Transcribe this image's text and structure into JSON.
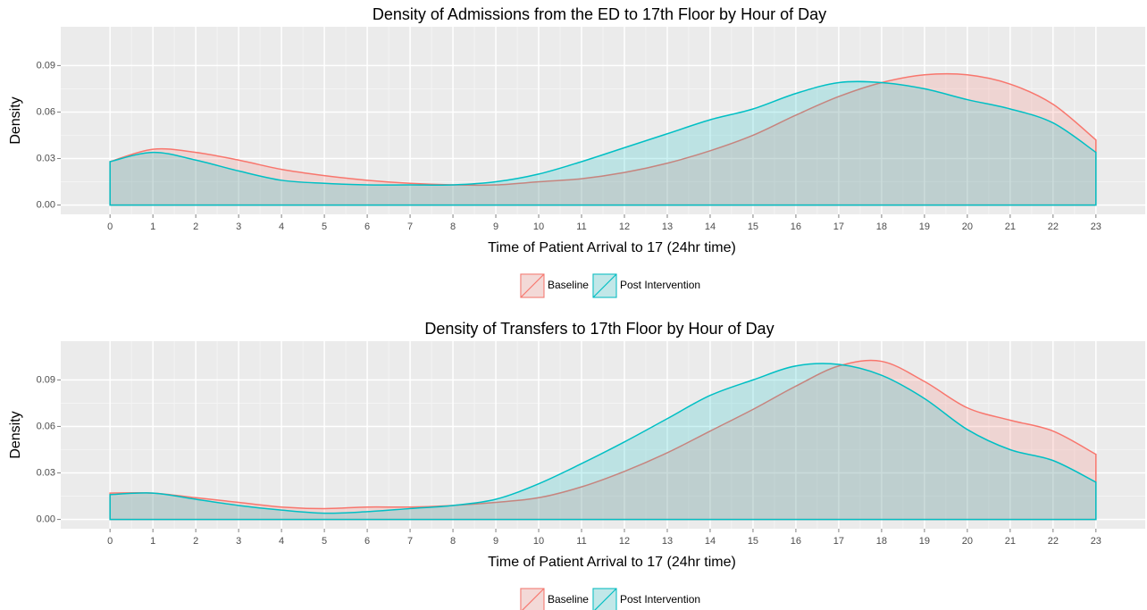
{
  "chart_data": [
    {
      "type": "density",
      "title": "Density of Admissions from the ED to 17th Floor by Hour of Day",
      "x_label": "Time of Patient Arrival to 17 (24hr time)",
      "y_label": "Density",
      "x": [
        0,
        1,
        2,
        3,
        4,
        5,
        6,
        7,
        8,
        9,
        10,
        11,
        12,
        13,
        14,
        15,
        16,
        17,
        18,
        19,
        20,
        21,
        22,
        23
      ],
      "series": [
        {
          "name": "Baseline",
          "color": "#F8766D",
          "values": [
            0.028,
            0.036,
            0.034,
            0.029,
            0.023,
            0.019,
            0.016,
            0.014,
            0.013,
            0.013,
            0.015,
            0.017,
            0.021,
            0.027,
            0.035,
            0.045,
            0.058,
            0.07,
            0.079,
            0.084,
            0.084,
            0.078,
            0.065,
            0.042
          ]
        },
        {
          "name": "Post Intervention",
          "color": "#00BFC4",
          "values": [
            0.028,
            0.034,
            0.029,
            0.022,
            0.016,
            0.014,
            0.013,
            0.013,
            0.013,
            0.015,
            0.02,
            0.028,
            0.037,
            0.046,
            0.055,
            0.062,
            0.072,
            0.079,
            0.079,
            0.075,
            0.068,
            0.062,
            0.053,
            0.034
          ]
        }
      ],
      "xlim": [
        -1.15,
        24.15
      ],
      "xticks": [
        0,
        1,
        2,
        3,
        4,
        5,
        6,
        7,
        8,
        9,
        10,
        11,
        12,
        13,
        14,
        15,
        16,
        17,
        18,
        19,
        20,
        21,
        22,
        23
      ],
      "ylim": [
        -0.006,
        0.115
      ],
      "yticks": [
        {
          "value": 0,
          "label": "0.00"
        },
        0.03,
        0.06,
        0.09
      ],
      "grid": true,
      "legend": "bottom"
    },
    {
      "type": "density",
      "title": "Density of Transfers to 17th Floor by Hour of Day",
      "x_label": "Time of Patient Arrival to 17 (24hr time)",
      "y_label": "Density",
      "x": [
        0,
        1,
        2,
        3,
        4,
        5,
        6,
        7,
        8,
        9,
        10,
        11,
        12,
        13,
        14,
        15,
        16,
        17,
        18,
        19,
        20,
        21,
        22,
        23
      ],
      "series": [
        {
          "name": "Baseline",
          "color": "#F8766D",
          "values": [
            0.017,
            0.017,
            0.014,
            0.011,
            0.008,
            0.007,
            0.008,
            0.008,
            0.009,
            0.011,
            0.014,
            0.021,
            0.031,
            0.043,
            0.057,
            0.071,
            0.086,
            0.099,
            0.102,
            0.089,
            0.072,
            0.064,
            0.057,
            0.042
          ]
        },
        {
          "name": "Post Intervention",
          "color": "#00BFC4",
          "values": [
            0.016,
            0.017,
            0.013,
            0.009,
            0.006,
            0.004,
            0.005,
            0.007,
            0.009,
            0.013,
            0.023,
            0.036,
            0.05,
            0.065,
            0.08,
            0.09,
            0.099,
            0.1,
            0.093,
            0.078,
            0.058,
            0.045,
            0.038,
            0.024
          ]
        }
      ],
      "xlim": [
        -1.15,
        24.15
      ],
      "xticks": [
        0,
        1,
        2,
        3,
        4,
        5,
        6,
        7,
        8,
        9,
        10,
        11,
        12,
        13,
        14,
        15,
        16,
        17,
        18,
        19,
        20,
        21,
        22,
        23
      ],
      "ylim": [
        -0.006,
        0.115
      ],
      "yticks": [
        {
          "value": 0,
          "label": "0.00"
        },
        0.03,
        0.06,
        0.09
      ],
      "grid": true,
      "legend": "bottom"
    }
  ]
}
